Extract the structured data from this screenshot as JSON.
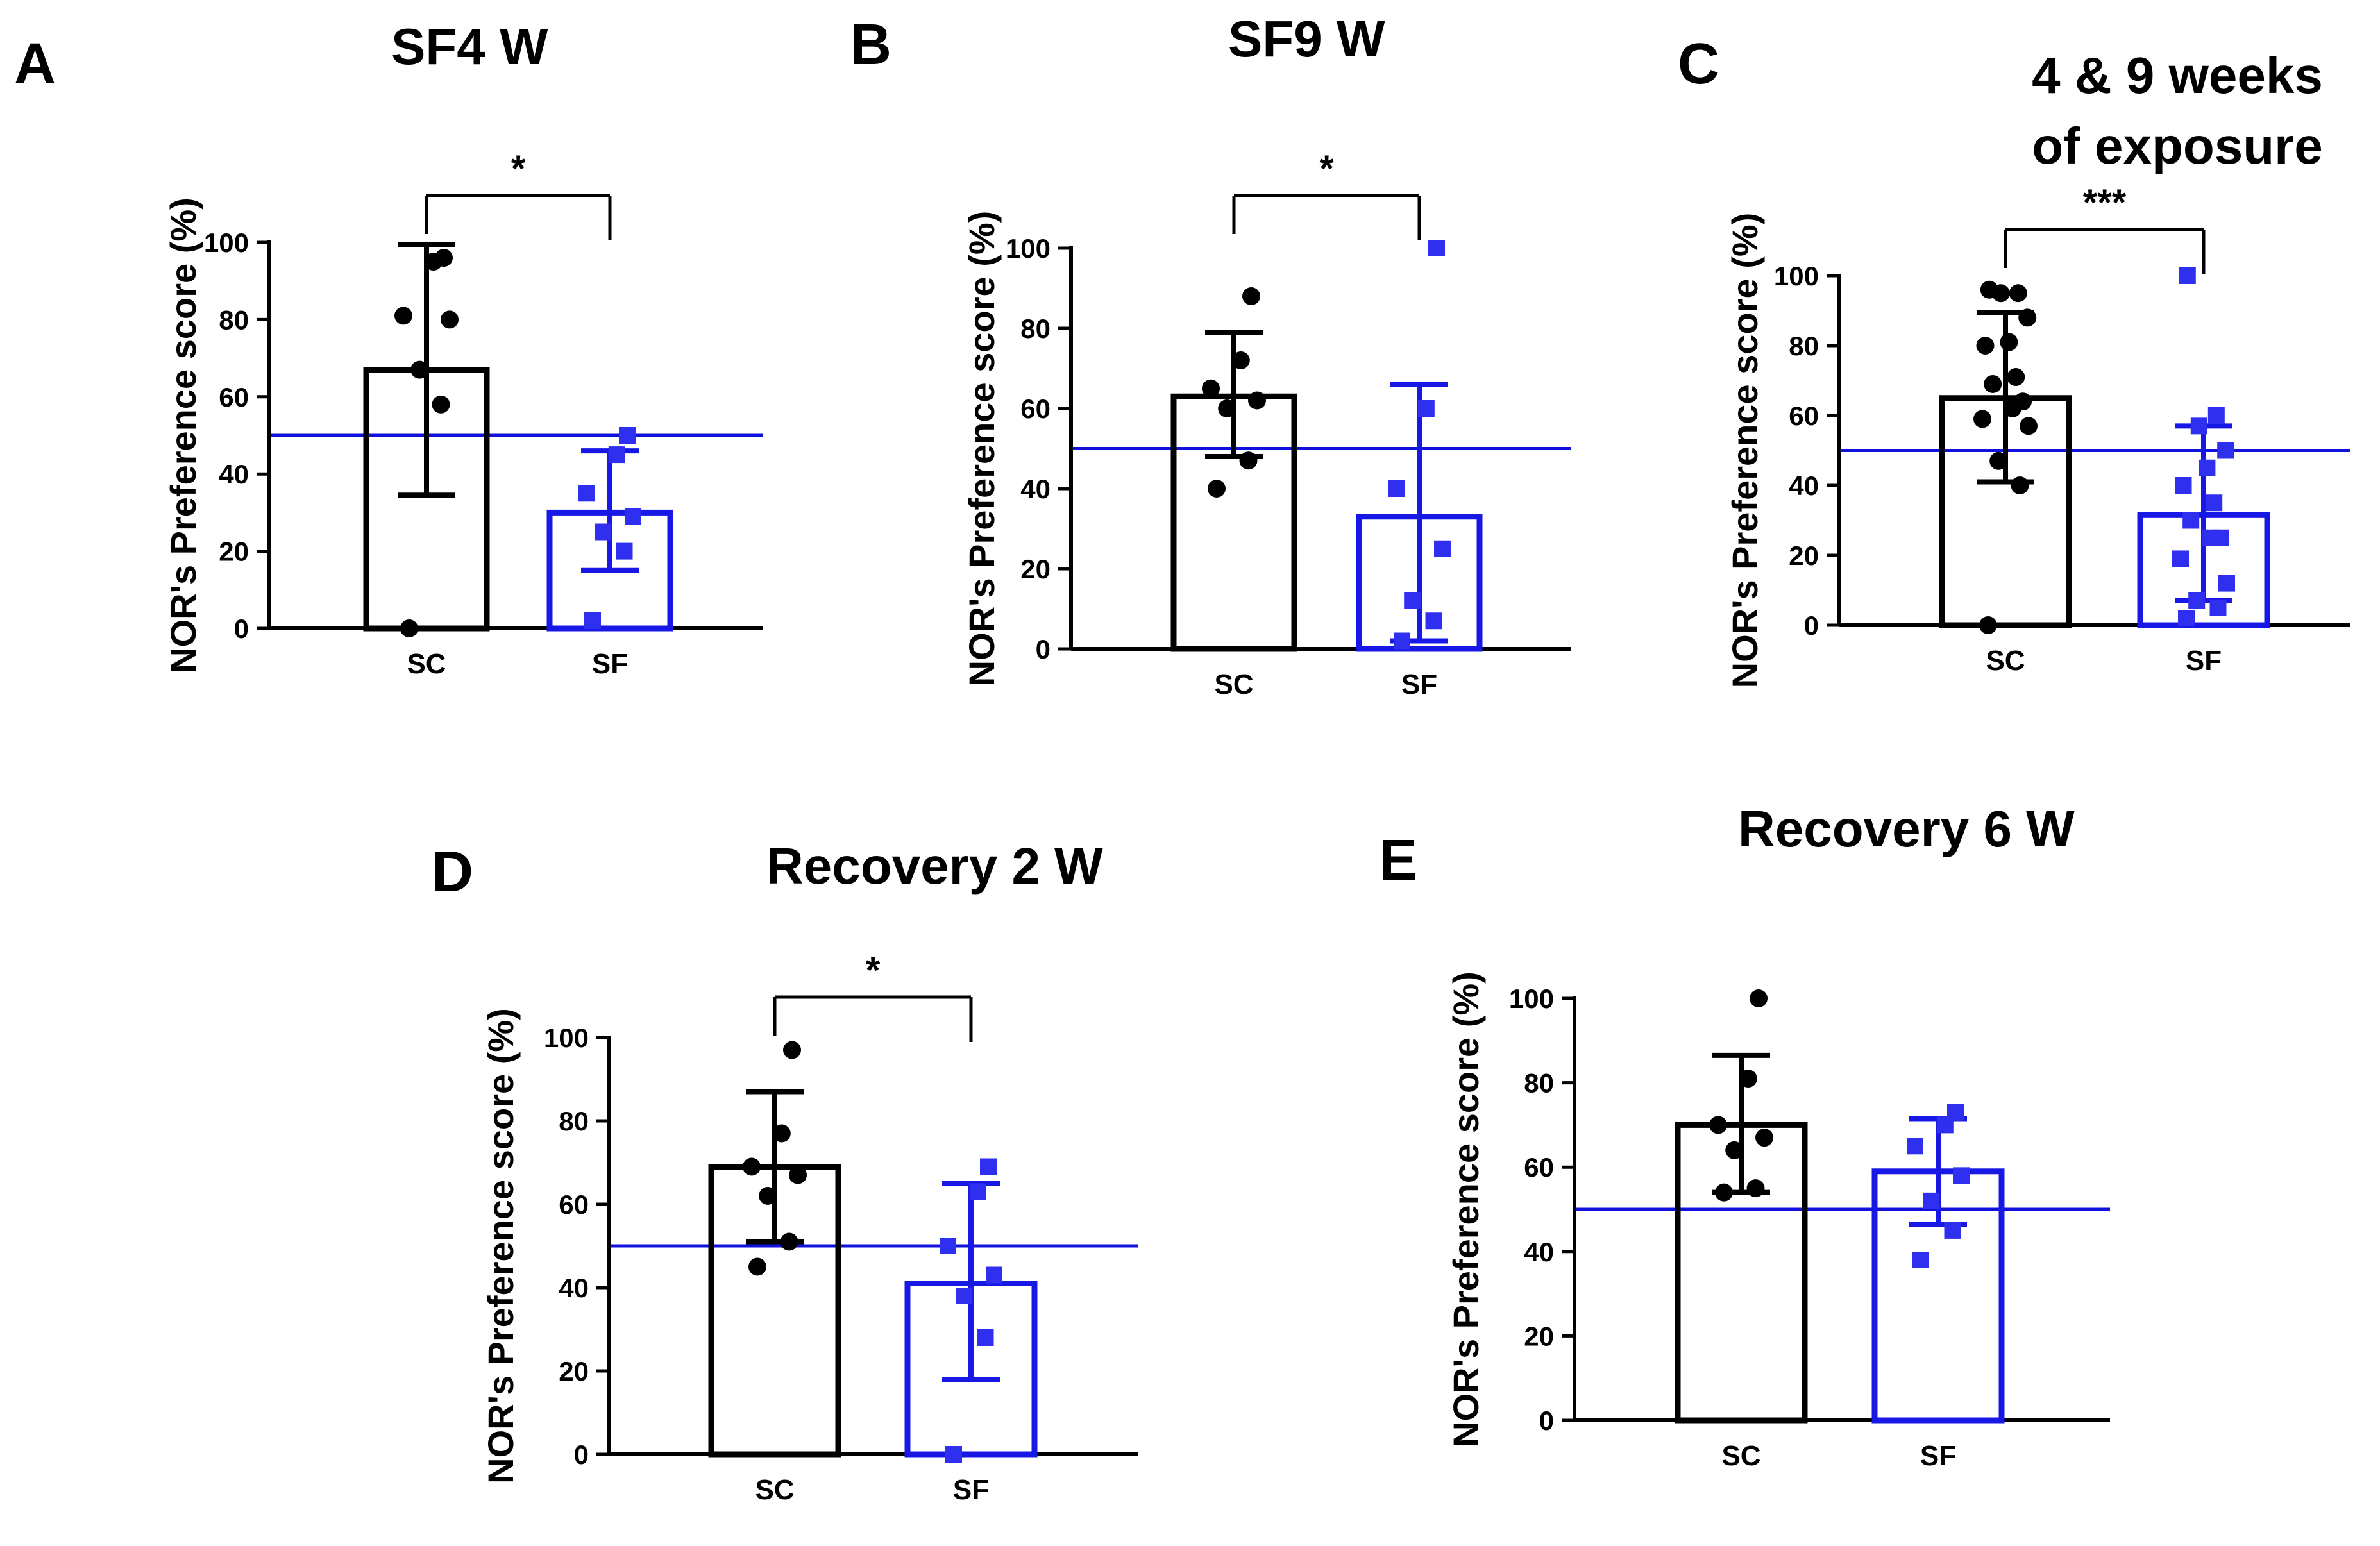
{
  "colors": {
    "sc": "#000000",
    "sf": "#2f2ff0",
    "sf_bar": "#1818e6",
    "reference": "#1111dd"
  },
  "chart_data": [
    {
      "id": "A",
      "panel_label": "A",
      "title": "SF4 W",
      "type": "bar",
      "ylabel": "NOR's Preference score (%)",
      "ylim": [
        0,
        100
      ],
      "yticks": [
        0,
        20,
        40,
        60,
        80,
        100
      ],
      "reference_line": 50,
      "categories": [
        "SC",
        "SF"
      ],
      "series": [
        {
          "name": "SC",
          "mean": 67,
          "error_lower": 34.5,
          "error_upper": 99.5,
          "points": [
            0,
            58,
            67,
            80,
            81,
            95,
            96
          ]
        },
        {
          "name": "SF",
          "mean": 30,
          "error_lower": 15,
          "error_upper": 46,
          "points": [
            2,
            20,
            25,
            29,
            35,
            45,
            50
          ]
        }
      ],
      "significance": "*"
    },
    {
      "id": "B",
      "panel_label": "B",
      "title": "SF9 W",
      "type": "bar",
      "ylabel": "NOR's Preference score (%)",
      "ylim": [
        0,
        100
      ],
      "yticks": [
        0,
        20,
        40,
        60,
        80,
        100
      ],
      "reference_line": 50,
      "categories": [
        "SC",
        "SF"
      ],
      "series": [
        {
          "name": "SC",
          "mean": 63,
          "error_lower": 48,
          "error_upper": 79,
          "points": [
            40,
            47,
            60,
            62,
            65,
            72,
            88
          ]
        },
        {
          "name": "SF",
          "mean": 33,
          "error_lower": 2,
          "error_upper": 66,
          "points": [
            2,
            7,
            12,
            25,
            40,
            60,
            100
          ]
        }
      ],
      "significance": "*"
    },
    {
      "id": "C",
      "panel_label": "C",
      "title": "4 & 9 weeks of exposure",
      "title_lines": [
        "4 & 9 weeks",
        "of exposure"
      ],
      "type": "bar",
      "ylabel": "NOR's Preference score (%)",
      "ylim": [
        0,
        100
      ],
      "yticks": [
        0,
        20,
        40,
        60,
        80,
        100
      ],
      "reference_line": 50,
      "categories": [
        "SC",
        "SF"
      ],
      "series": [
        {
          "name": "SC",
          "mean": 65,
          "error_lower": 41,
          "error_upper": 89.5,
          "points": [
            0,
            40,
            47,
            57,
            59,
            62,
            64,
            69,
            71,
            80,
            81,
            88,
            95,
            95,
            96
          ]
        },
        {
          "name": "SF",
          "mean": 31.5,
          "error_lower": 7,
          "error_upper": 57,
          "points": [
            2,
            5,
            7,
            12,
            19,
            25,
            25,
            30,
            35,
            40,
            45,
            50,
            57,
            60,
            100
          ]
        }
      ],
      "significance": "***"
    },
    {
      "id": "D",
      "panel_label": "D",
      "title": "Recovery 2 W",
      "type": "bar",
      "ylabel": "NOR's Preference score (%)",
      "ylim": [
        0,
        100
      ],
      "yticks": [
        0,
        20,
        40,
        60,
        80,
        100
      ],
      "reference_line": 50,
      "categories": [
        "SC",
        "SF"
      ],
      "series": [
        {
          "name": "SC",
          "mean": 69,
          "error_lower": 51,
          "error_upper": 87,
          "points": [
            45,
            51,
            62,
            67,
            69,
            77,
            97
          ]
        },
        {
          "name": "SF",
          "mean": 41,
          "error_lower": 18,
          "error_upper": 65,
          "points": [
            0,
            28,
            38,
            43,
            50,
            63,
            69
          ]
        }
      ],
      "significance": "*"
    },
    {
      "id": "E",
      "panel_label": "E",
      "title": "Recovery 6 W",
      "type": "bar",
      "ylabel": "NOR's Preference score (%)",
      "ylim": [
        0,
        100
      ],
      "yticks": [
        0,
        20,
        40,
        60,
        80,
        100
      ],
      "reference_line": 50,
      "categories": [
        "SC",
        "SF"
      ],
      "series": [
        {
          "name": "SC",
          "mean": 70,
          "error_lower": 54,
          "error_upper": 86.5,
          "points": [
            54,
            55,
            64,
            67,
            70,
            81,
            100
          ]
        },
        {
          "name": "SF",
          "mean": 59,
          "error_lower": 46.5,
          "error_upper": 71.5,
          "points": [
            38,
            45,
            52,
            58,
            65,
            70,
            73
          ]
        }
      ],
      "significance": ""
    }
  ]
}
